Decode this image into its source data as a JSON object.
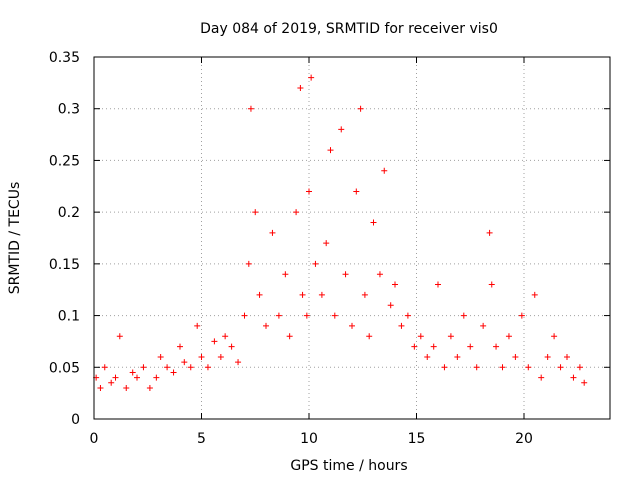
{
  "chart_data": {
    "type": "scatter",
    "title": "Day 084 of 2019, SRMTID for receiver vis0",
    "xlabel": "GPS time / hours",
    "ylabel": "SRMTID / TECUs",
    "xlim": [
      0,
      24
    ],
    "ylim": [
      0,
      0.35
    ],
    "xticks": [
      "0",
      "5",
      "10",
      "15",
      "20"
    ],
    "yticks": [
      "0",
      "0.05",
      "0.1",
      "0.15",
      "0.2",
      "0.25",
      "0.3",
      "0.35"
    ],
    "grid": true,
    "marker": "+",
    "color": "#ff0000",
    "series": [
      {
        "name": "SRMTID",
        "x": [
          0.1,
          0.3,
          0.5,
          0.8,
          1.0,
          1.2,
          1.5,
          1.8,
          2.0,
          2.3,
          2.6,
          2.9,
          3.1,
          3.4,
          3.7,
          4.0,
          4.2,
          4.5,
          4.8,
          5.0,
          5.3,
          5.6,
          5.9,
          6.1,
          6.4,
          6.7,
          7.0,
          7.2,
          7.3,
          7.5,
          7.7,
          8.0,
          8.3,
          8.6,
          8.9,
          9.1,
          9.4,
          9.6,
          9.7,
          9.9,
          10.0,
          10.1,
          10.3,
          10.6,
          10.8,
          11.0,
          11.2,
          11.5,
          11.7,
          12.0,
          12.2,
          12.4,
          12.6,
          12.8,
          13.0,
          13.3,
          13.5,
          13.8,
          14.0,
          14.3,
          14.6,
          14.9,
          15.2,
          15.5,
          15.8,
          16.0,
          16.3,
          16.6,
          16.9,
          17.2,
          17.5,
          17.8,
          18.1,
          18.4,
          18.5,
          18.7,
          19.0,
          19.3,
          19.6,
          19.9,
          20.2,
          20.5,
          20.8,
          21.1,
          21.4,
          21.7,
          22.0,
          22.3,
          22.6,
          22.8
        ],
        "y": [
          0.04,
          0.03,
          0.05,
          0.035,
          0.04,
          0.08,
          0.03,
          0.045,
          0.04,
          0.05,
          0.03,
          0.04,
          0.06,
          0.05,
          0.045,
          0.07,
          0.055,
          0.05,
          0.09,
          0.06,
          0.05,
          0.075,
          0.06,
          0.08,
          0.07,
          0.055,
          0.1,
          0.15,
          0.3,
          0.2,
          0.12,
          0.09,
          0.18,
          0.1,
          0.14,
          0.08,
          0.2,
          0.32,
          0.12,
          0.1,
          0.22,
          0.33,
          0.15,
          0.12,
          0.17,
          0.26,
          0.1,
          0.28,
          0.14,
          0.09,
          0.22,
          0.3,
          0.12,
          0.08,
          0.19,
          0.14,
          0.24,
          0.11,
          0.13,
          0.09,
          0.1,
          0.07,
          0.08,
          0.06,
          0.07,
          0.13,
          0.05,
          0.08,
          0.06,
          0.1,
          0.07,
          0.05,
          0.09,
          0.18,
          0.13,
          0.07,
          0.05,
          0.08,
          0.06,
          0.1,
          0.05,
          0.12,
          0.04,
          0.06,
          0.08,
          0.05,
          0.06,
          0.04,
          0.05,
          0.035
        ]
      }
    ]
  }
}
